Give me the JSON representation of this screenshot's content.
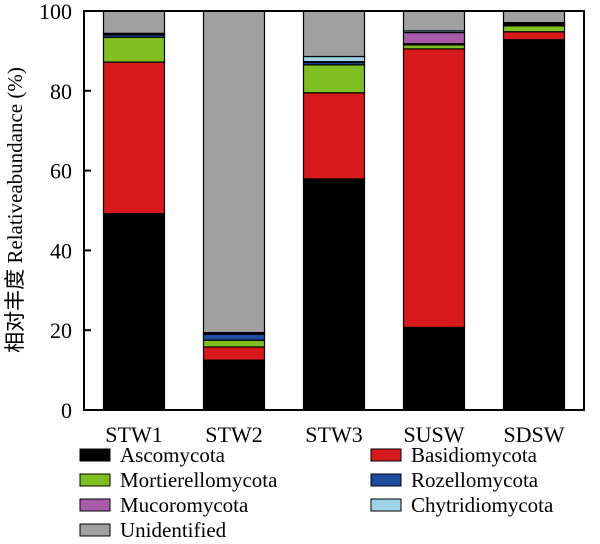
{
  "chart_data": {
    "type": "bar",
    "stacked": true,
    "ylabel": "相对丰度 Relativeabundance (%)",
    "xlabel": "",
    "ylim": [
      0,
      100
    ],
    "yticks": [
      0,
      20,
      40,
      60,
      80,
      100
    ],
    "categories": [
      "STW1",
      "STW2",
      "STW3",
      "SUSW",
      "SDSW"
    ],
    "series": [
      {
        "name": "Ascomycota",
        "color": "#000000",
        "values": [
          49.2,
          12.5,
          57.9,
          20.7,
          92.8
        ]
      },
      {
        "name": "Basidiomycota",
        "color": "#d7191c",
        "values": [
          38.0,
          3.3,
          21.6,
          69.8,
          2.0
        ]
      },
      {
        "name": "Mortierellomycota",
        "color": "#7fbf1f",
        "values": [
          6.2,
          1.7,
          7.0,
          1.0,
          1.5
        ]
      },
      {
        "name": "Rozellomycota",
        "color": "#1f4e9e",
        "values": [
          0.6,
          1.5,
          0.6,
          0.3,
          0.3
        ]
      },
      {
        "name": "Mucoromycota",
        "color": "#a75ba8",
        "values": [
          0.2,
          0.2,
          0.2,
          2.8,
          0.2
        ]
      },
      {
        "name": "Chytridiomycota",
        "color": "#9fd2e8",
        "values": [
          0.2,
          0.2,
          1.3,
          0.4,
          0.3
        ]
      },
      {
        "name": "Unidentified",
        "color": "#a0a0a0",
        "values": [
          5.6,
          80.6,
          11.4,
          5.0,
          2.9
        ]
      }
    ],
    "legend": {
      "placement": "bottom",
      "entries": [
        {
          "name": "Ascomycota",
          "color": "#000000",
          "column": 0
        },
        {
          "name": "Basidiomycota",
          "color": "#d7191c",
          "column": 1
        },
        {
          "name": "Mortierellomycota",
          "color": "#7fbf1f",
          "column": 0
        },
        {
          "name": "Rozellomycota",
          "color": "#1f4e9e",
          "column": 1
        },
        {
          "name": "Mucoromycota",
          "color": "#a75ba8",
          "column": 0
        },
        {
          "name": "Chytridiomycota",
          "color": "#9fd2e8",
          "column": 1
        },
        {
          "name": "Unidentified",
          "color": "#a0a0a0",
          "column": 0
        }
      ]
    },
    "grid": false
  }
}
